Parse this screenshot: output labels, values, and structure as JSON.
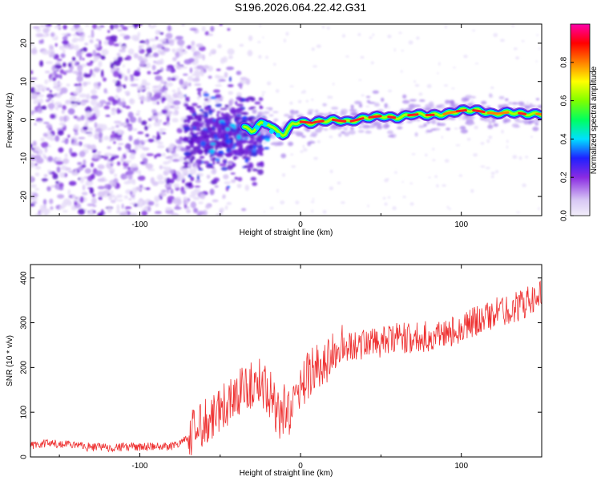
{
  "title": "S196.2026.064.22.42.G31",
  "chart_data": [
    {
      "type": "heatmap",
      "title": "S196.2026.064.22.42.G31",
      "xlabel": "Height of straight line (km)",
      "ylabel": "Frequency (Hz)",
      "xlim": [
        -168,
        150
      ],
      "ylim": [
        -25,
        25
      ],
      "x_ticks": [
        -100,
        0,
        100
      ],
      "y_ticks": [
        -20,
        -10,
        0,
        10,
        20
      ],
      "colorbar": {
        "label": "Normalized spectral amplitude",
        "range": [
          0,
          1
        ],
        "ticks": [
          0.0,
          0.2,
          0.4,
          0.6,
          0.8
        ],
        "tick_labels": [
          "0.0",
          "0.2",
          "0.4",
          "0.6",
          "0.8"
        ],
        "colors": [
          "#f2eefa",
          "#d8c8f4",
          "#8a2be2",
          "#2020ff",
          "#00e0ff",
          "#00ff60",
          "#80ff00",
          "#ffff00",
          "#ff8000",
          "#ff0000",
          "#ff00aa"
        ]
      },
      "ridge": {
        "x": [
          -35,
          -30,
          -25,
          -20,
          -15,
          -10,
          -5,
          0,
          5,
          10,
          20,
          30,
          40,
          50,
          60,
          70,
          80,
          90,
          100,
          110,
          120,
          130,
          140,
          150
        ],
        "y": [
          -2,
          -3,
          -1,
          -1,
          -3,
          -4,
          -1,
          -0.5,
          -1,
          -0.5,
          0,
          -0.5,
          0.5,
          1,
          0.5,
          1.5,
          1.2,
          1.5,
          2.5,
          2.5,
          1.5,
          2,
          1.5,
          1.5
        ]
      }
    },
    {
      "type": "line",
      "xlabel": "Height of straight line (km)",
      "ylabel": "SNR (10 * v/v)",
      "xlim": [
        -168,
        150
      ],
      "ylim": [
        0,
        430
      ],
      "x_ticks": [
        -100,
        0,
        100
      ],
      "y_ticks": [
        0,
        100,
        200,
        300,
        400
      ],
      "line_color": "#ee3030",
      "series": [
        {
          "name": "SNR",
          "x": [
            -168,
            -160,
            -150,
            -140,
            -130,
            -120,
            -110,
            -100,
            -90,
            -80,
            -70,
            -60,
            -50,
            -40,
            -35,
            -30,
            -25,
            -20,
            -15,
            -12,
            -10,
            -8,
            -5,
            -3,
            0,
            5,
            10,
            15,
            20,
            25,
            30,
            40,
            50,
            60,
            70,
            80,
            90,
            100,
            110,
            120,
            130,
            140,
            150
          ],
          "values": [
            25,
            30,
            28,
            25,
            22,
            22,
            22,
            23,
            22,
            25,
            40,
            80,
            110,
            140,
            150,
            160,
            170,
            150,
            100,
            70,
            120,
            110,
            80,
            170,
            150,
            185,
            200,
            215,
            225,
            240,
            245,
            255,
            255,
            265,
            265,
            270,
            275,
            290,
            305,
            320,
            330,
            345,
            360
          ]
        }
      ]
    }
  ]
}
